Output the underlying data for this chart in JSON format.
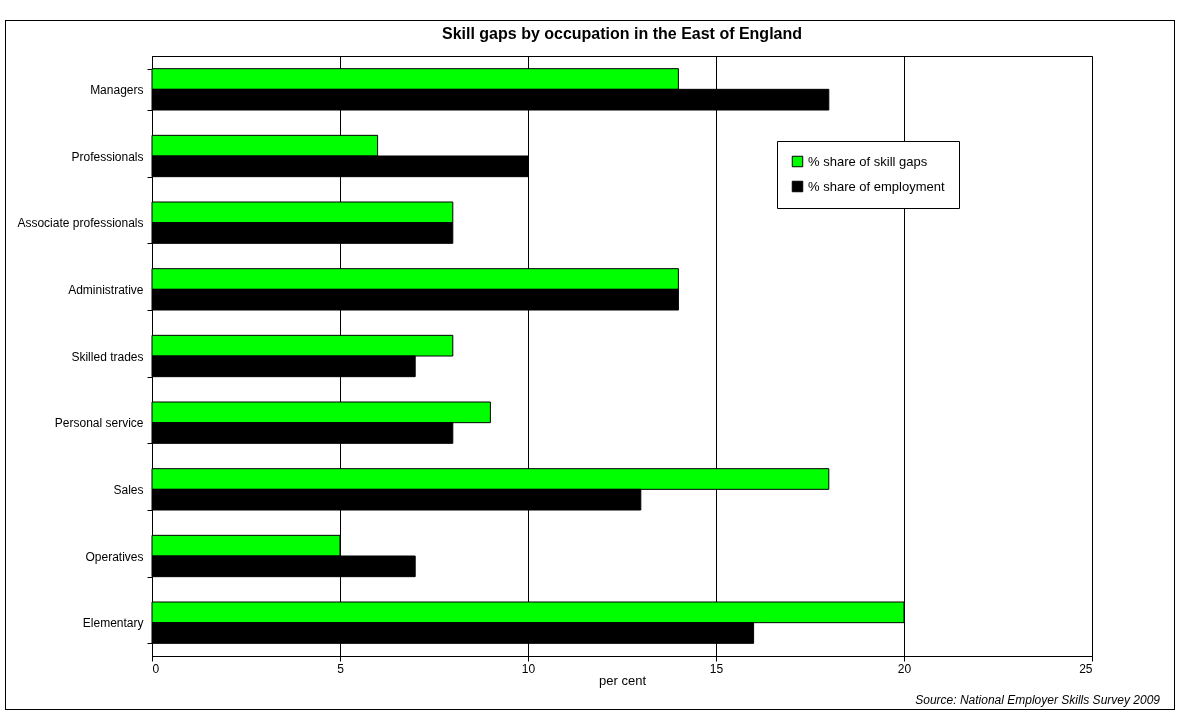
{
  "chart_data": {
    "type": "bar",
    "orientation": "horizontal",
    "title": "Skill gaps by occupation in the East of England",
    "xlabel": "per cent",
    "categories": [
      "Managers",
      "Professionals",
      "Associate professionals",
      "Administrative",
      "Skilled trades",
      "Personal service",
      "Sales",
      "Operatives",
      "Elementary"
    ],
    "series": [
      {
        "name": "% share of skill gaps",
        "color": "#00ff00",
        "values": [
          14,
          6,
          8,
          14,
          8,
          9,
          18,
          5,
          20
        ]
      },
      {
        "name": "% share of employment",
        "color": "#000000",
        "values": [
          18,
          10,
          8,
          14,
          7,
          8,
          13,
          7,
          16
        ]
      }
    ],
    "xlim": [
      0,
      25
    ],
    "xticks": [
      0,
      5,
      10,
      15,
      20,
      25
    ],
    "grid": "x",
    "legend": "top right",
    "annotations": [
      "Source: National Employer Skills Survey 2009"
    ]
  }
}
